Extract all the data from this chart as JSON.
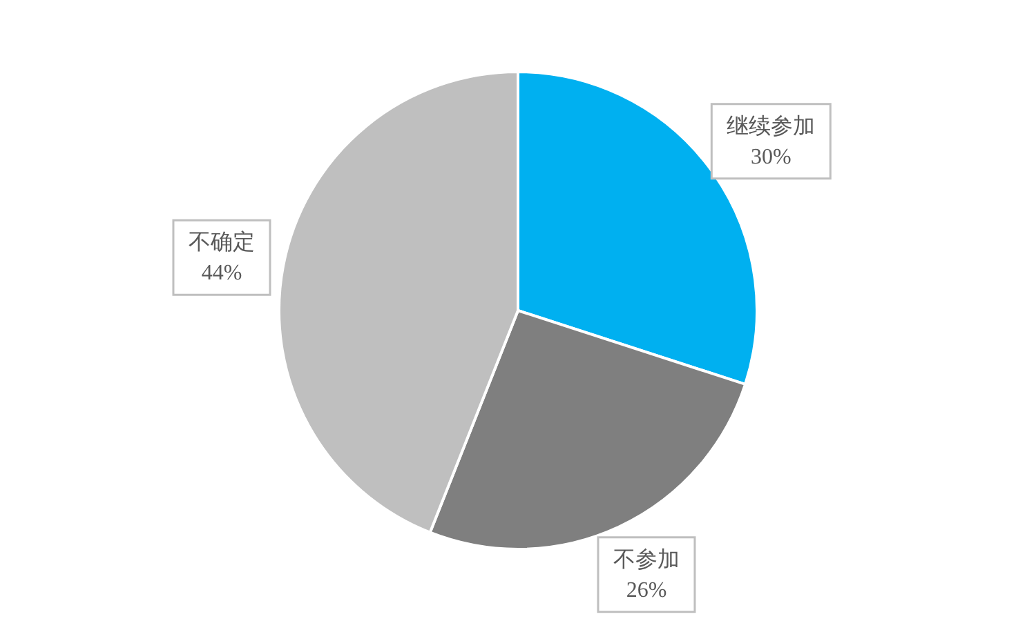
{
  "chart_data": {
    "type": "pie",
    "categories": [
      "继续参加",
      "不参加",
      "不确定"
    ],
    "values": [
      30,
      26,
      44
    ],
    "colors": [
      "#00b0f0",
      "#7f7f7f",
      "#bfbfbf"
    ],
    "value_labels": [
      "30%",
      "26%",
      "44%"
    ]
  }
}
